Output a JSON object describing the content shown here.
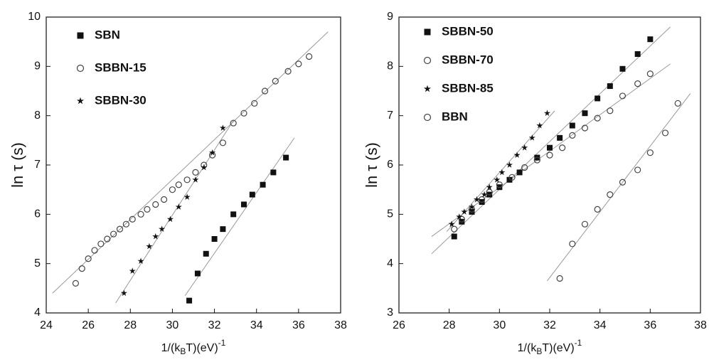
{
  "chart_data": [
    {
      "type": "scatter",
      "xlim": [
        24,
        38
      ],
      "ylim": [
        4,
        10
      ],
      "xticks": [
        24,
        26,
        28,
        30,
        32,
        34,
        36,
        38
      ],
      "yticks": [
        4,
        5,
        6,
        7,
        8,
        9,
        10
      ],
      "xlabel": [
        "1/(k",
        "B",
        "T)(eV)",
        "-1"
      ],
      "ylabel": "ln τ (s)",
      "series": [
        {
          "name": "SBN",
          "marker": "square",
          "color": "#111111",
          "x": [
            30.8,
            31.2,
            31.6,
            32.0,
            32.4,
            32.9,
            33.4,
            33.8,
            34.3,
            34.8,
            35.4
          ],
          "values": [
            4.25,
            4.8,
            5.2,
            5.5,
            5.7,
            6.0,
            6.2,
            6.4,
            6.6,
            6.85,
            7.15
          ],
          "fit": {
            "x": [
              30.6,
              35.8
            ],
            "y": [
              4.35,
              7.55
            ]
          }
        },
        {
          "name": "SBBN-15",
          "marker": "circle",
          "color": "#444444",
          "x": [
            25.4,
            25.7,
            26.0,
            26.3,
            26.6,
            26.9,
            27.2,
            27.5,
            27.8,
            28.1,
            28.5,
            28.8,
            29.2,
            29.6,
            30.0,
            30.3,
            30.7,
            31.1,
            31.5,
            31.9,
            32.4,
            32.9,
            33.4,
            33.9,
            34.4,
            34.9,
            35.5,
            36.0,
            36.5
          ],
          "values": [
            4.6,
            4.9,
            5.1,
            5.27,
            5.4,
            5.5,
            5.6,
            5.7,
            5.8,
            5.9,
            6.0,
            6.1,
            6.2,
            6.3,
            6.5,
            6.6,
            6.7,
            6.85,
            7.0,
            7.2,
            7.45,
            7.85,
            8.05,
            8.25,
            8.5,
            8.7,
            8.9,
            9.05,
            9.2
          ],
          "fit": {
            "x": [
              24.3,
              37.4
            ],
            "y": [
              4.4,
              9.7
            ]
          }
        },
        {
          "name": "SBBN-30",
          "marker": "star",
          "color": "#111111",
          "x": [
            27.7,
            28.1,
            28.5,
            28.9,
            29.2,
            29.5,
            29.9,
            30.3,
            30.7,
            31.1,
            31.5,
            31.9,
            32.4
          ],
          "values": [
            4.4,
            4.85,
            5.05,
            5.35,
            5.55,
            5.7,
            5.9,
            6.15,
            6.35,
            6.7,
            6.95,
            7.25,
            7.75
          ],
          "fit": {
            "x": [
              27.3,
              32.9
            ],
            "y": [
              4.2,
              7.9
            ]
          }
        }
      ]
    },
    {
      "type": "scatter",
      "xlim": [
        26,
        38
      ],
      "ylim": [
        3,
        9
      ],
      "xticks": [
        26,
        28,
        30,
        32,
        34,
        36,
        38
      ],
      "yticks": [
        3,
        4,
        5,
        6,
        7,
        8,
        9
      ],
      "xlabel": [
        "1/(k",
        "B",
        "T)(eV)",
        "-1"
      ],
      "ylabel": "ln τ (s)",
      "series": [
        {
          "name": "SBBN-50",
          "marker": "square",
          "color": "#111111",
          "x": [
            28.2,
            28.5,
            28.9,
            29.3,
            29.6,
            30.0,
            30.4,
            30.8,
            31.5,
            32.0,
            32.4,
            32.9,
            33.4,
            33.9,
            34.4,
            34.9,
            35.5,
            36.0
          ],
          "values": [
            4.55,
            4.85,
            5.05,
            5.25,
            5.4,
            5.55,
            5.7,
            5.85,
            6.15,
            6.35,
            6.55,
            6.8,
            7.05,
            7.35,
            7.6,
            7.95,
            8.25,
            8.55
          ],
          "fit": {
            "x": [
              27.3,
              36.8
            ],
            "y": [
              4.2,
              8.8
            ]
          }
        },
        {
          "name": "SBBN-70",
          "marker": "circle",
          "color": "#444444",
          "x": [
            28.2,
            28.5,
            28.9,
            29.3,
            29.6,
            30.0,
            30.5,
            31.0,
            31.5,
            32.0,
            32.5,
            32.9,
            33.4,
            33.9,
            34.4,
            34.9,
            35.5,
            36.0
          ],
          "values": [
            4.7,
            4.9,
            5.1,
            5.3,
            5.45,
            5.6,
            5.75,
            5.95,
            6.1,
            6.2,
            6.35,
            6.6,
            6.75,
            6.95,
            7.1,
            7.4,
            7.65,
            7.85
          ],
          "fit": {
            "x": [
              27.3,
              36.8
            ],
            "y": [
              4.55,
              8.05
            ]
          }
        },
        {
          "name": "SBBN-85",
          "marker": "star",
          "color": "#111111",
          "x": [
            28.1,
            28.4,
            28.6,
            28.9,
            29.1,
            29.4,
            29.6,
            29.9,
            30.1,
            30.4,
            30.7,
            31.0,
            31.3,
            31.6,
            31.9
          ],
          "values": [
            4.8,
            4.95,
            5.05,
            5.15,
            5.3,
            5.4,
            5.55,
            5.7,
            5.85,
            6.0,
            6.2,
            6.35,
            6.55,
            6.8,
            7.05
          ],
          "fit": {
            "x": [
              27.9,
              32.2
            ],
            "y": [
              4.65,
              7.1
            ]
          }
        },
        {
          "name": "BBN",
          "marker": "circle",
          "color": "#444444",
          "x": [
            32.4,
            32.9,
            33.4,
            33.9,
            34.4,
            34.9,
            35.5,
            36.0,
            36.6,
            37.1
          ],
          "values": [
            3.7,
            4.4,
            4.8,
            5.1,
            5.4,
            5.65,
            5.9,
            6.25,
            6.65,
            7.25
          ],
          "fit": {
            "x": [
              31.9,
              37.6
            ],
            "y": [
              3.65,
              7.45
            ]
          }
        }
      ]
    }
  ]
}
